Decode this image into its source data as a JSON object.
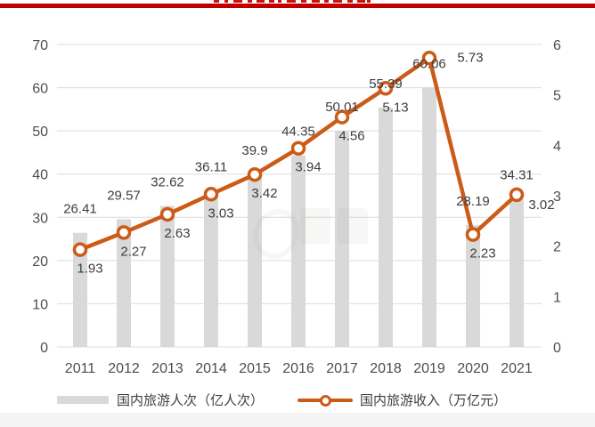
{
  "page": {
    "background": "#ffffff",
    "top_rule_color": "#c00000",
    "title_truncated": true
  },
  "chart_data": {
    "type": "bar+line",
    "categories": [
      "2011",
      "2012",
      "2013",
      "2014",
      "2015",
      "2016",
      "2017",
      "2018",
      "2019",
      "2020",
      "2021"
    ],
    "series": [
      {
        "name": "国内旅游人次（亿人次）",
        "type": "bar",
        "axis": "left",
        "color": "#d9d9d9",
        "values": [
          26.41,
          29.57,
          32.62,
          36.11,
          39.9,
          44.35,
          50.01,
          55.39,
          60.06,
          28.19,
          34.31
        ]
      },
      {
        "name": "国内旅游收入（万亿元）",
        "type": "line",
        "axis": "right",
        "color": "#cc5b18",
        "marker": "open-circle",
        "values": [
          1.93,
          2.27,
          2.63,
          3.03,
          3.42,
          3.94,
          4.56,
          5.13,
          5.73,
          2.23,
          3.02
        ]
      }
    ],
    "left_axis": {
      "min": 0,
      "max": 70,
      "step": 10
    },
    "right_axis": {
      "min": 0,
      "max": 6,
      "step": 1
    },
    "grid": true,
    "data_labels": true,
    "legend_position": "bottom",
    "tick_color": "#4d4d4d",
    "label_color": "#3d3d3d",
    "grid_color": "#dcdcdc"
  },
  "legend": {
    "bar_label": "国内旅游人次（亿人次）",
    "line_label": "国内旅游收入（万亿元）"
  }
}
